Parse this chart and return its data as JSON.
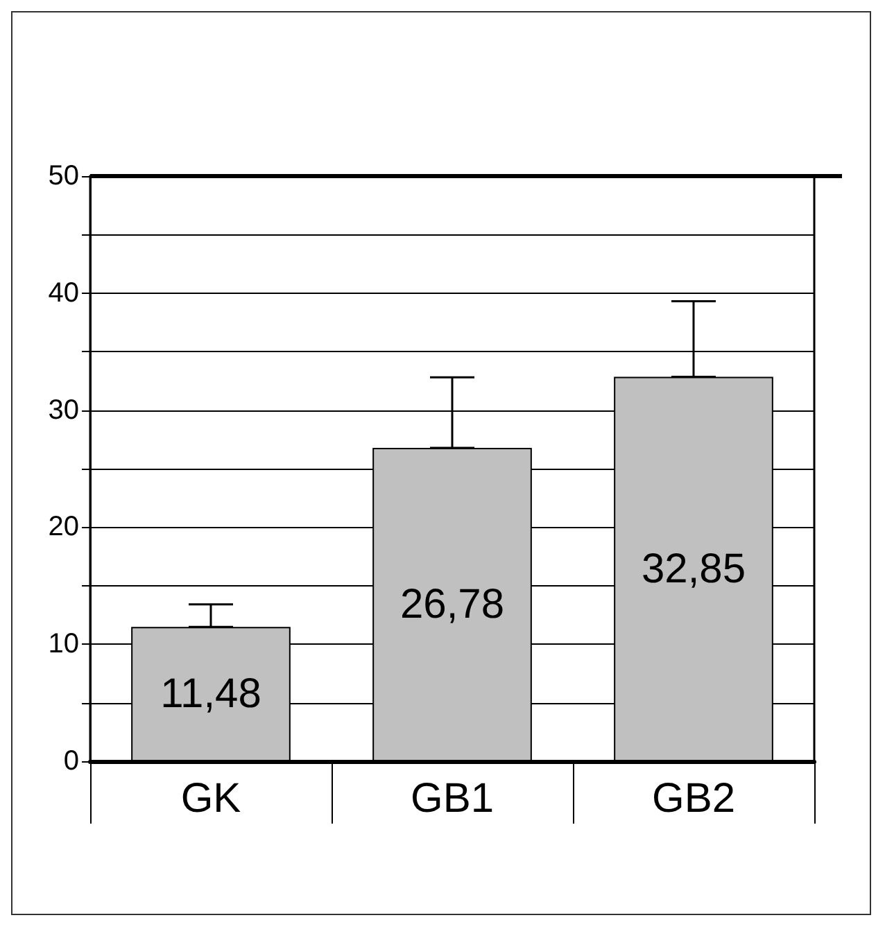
{
  "chart_data": {
    "type": "bar",
    "categories": [
      "GK",
      "GB1",
      "GB2"
    ],
    "values": [
      11.48,
      26.78,
      32.85
    ],
    "color": "#c0c0c0",
    "errors": [
      [
        11.48,
        13.4
      ],
      [
        26.78,
        32.8
      ],
      [
        32.85,
        39.3
      ]
    ],
    "value_labels": [
      "11,48",
      "26,78",
      "32,85"
    ],
    "ylim": [
      0,
      50
    ],
    "yticks": [
      0,
      {
        "value": 5,
        "label": null
      },
      10,
      {
        "value": 15,
        "label": null
      },
      20,
      {
        "value": 25,
        "label": null
      },
      30,
      {
        "value": 35,
        "label": null
      },
      40,
      {
        "value": 45,
        "label": null
      },
      50
    ],
    "grid": true
  }
}
